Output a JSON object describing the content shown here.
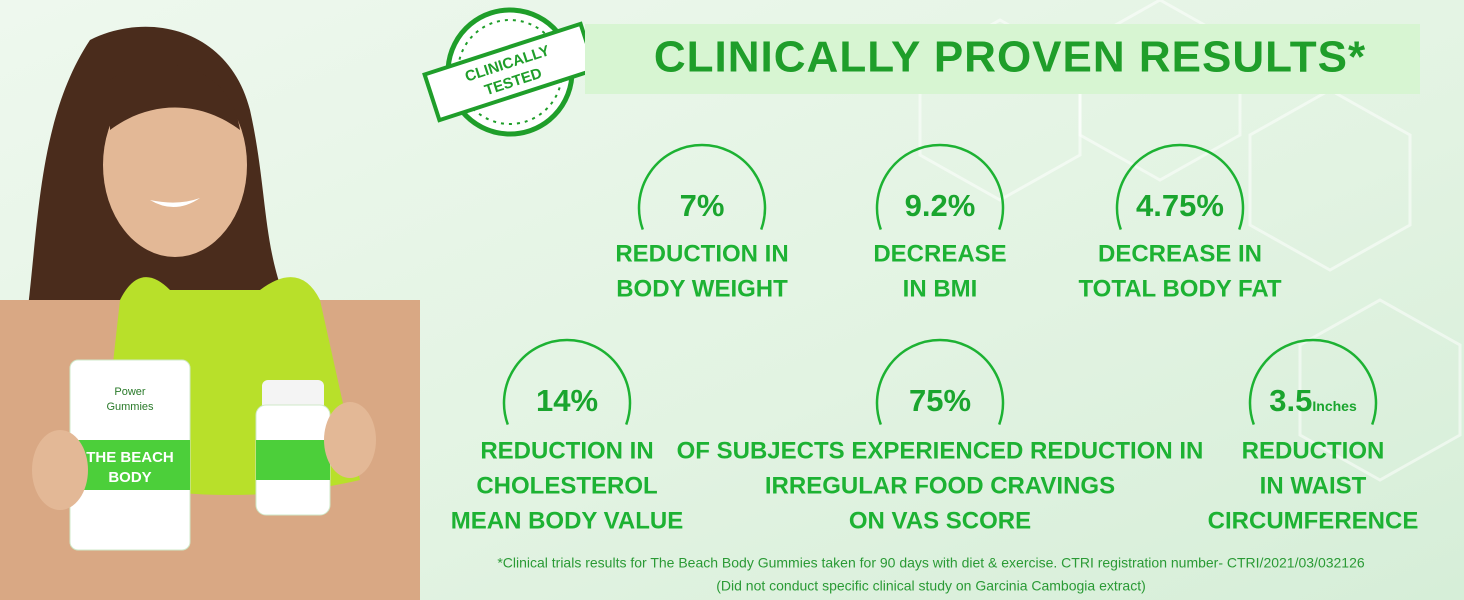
{
  "badge": {
    "lines": [
      "CLINICALLY",
      "TESTED"
    ]
  },
  "title": "CLINICALLY PROVEN RESULTS*",
  "product": {
    "brand": [
      "Power",
      "Gummies"
    ],
    "name": [
      "THE BEACH",
      "BODY"
    ]
  },
  "stats": [
    {
      "value": "7%",
      "label": [
        "REDUCTION IN",
        "BODY WEIGHT"
      ]
    },
    {
      "value": "9.2%",
      "label": [
        "DECREASE",
        "IN BMI"
      ]
    },
    {
      "value": "4.75%",
      "label": [
        "DECREASE IN",
        "TOTAL BODY FAT"
      ]
    },
    {
      "value": "14%",
      "label": [
        "REDUCTION IN",
        "CHOLESTEROL",
        "MEAN BODY VALUE"
      ]
    },
    {
      "value": "75%",
      "label": [
        "OF SUBJECTS EXPERIENCED REDUCTION IN",
        "IRREGULAR FOOD CRAVINGS",
        "ON VAS SCORE"
      ]
    },
    {
      "value": "3.5",
      "unit": "Inches",
      "label": [
        "REDUCTION",
        "IN WAIST",
        "CIRCUMFERENCE"
      ]
    }
  ],
  "footnote": [
    "*Clinical trials results for The Beach Body Gummies taken for 90 days with diet & exercise. CTRI registration number- CTRI/2021/03/032126",
    "(Did not conduct specific clinical study on Garcinia Cambogia extract)"
  ]
}
